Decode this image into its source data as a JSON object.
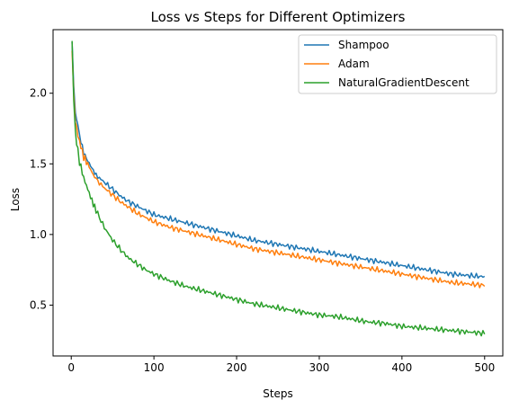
{
  "chart_data": {
    "type": "line",
    "title": "Loss vs Steps for Different Optimizers",
    "xlabel": "Steps",
    "ylabel": "Loss",
    "xlim": [
      -22,
      522
    ],
    "ylim": [
      0.14,
      2.45
    ],
    "xticks": [
      0,
      100,
      200,
      300,
      400,
      500
    ],
    "yticks": [
      0.5,
      1.0,
      1.5,
      2.0
    ],
    "xtick_labels": [
      "0",
      "100",
      "200",
      "300",
      "400",
      "500"
    ],
    "ytick_labels": [
      "0.5",
      "1.0",
      "1.5",
      "2.0"
    ],
    "grid": false,
    "legend": "top-right",
    "series": [
      {
        "name": "Shampoo",
        "color": "#1f77b4",
        "x": [
          1,
          3,
          5,
          8,
          10,
          15,
          20,
          25,
          30,
          40,
          50,
          60,
          70,
          80,
          90,
          100,
          120,
          140,
          160,
          180,
          200,
          220,
          240,
          260,
          280,
          300,
          320,
          340,
          360,
          380,
          400,
          420,
          440,
          460,
          480,
          500
        ],
        "y": [
          2.36,
          2.05,
          1.85,
          1.78,
          1.7,
          1.58,
          1.52,
          1.47,
          1.42,
          1.37,
          1.32,
          1.27,
          1.23,
          1.2,
          1.17,
          1.14,
          1.11,
          1.08,
          1.05,
          1.02,
          0.99,
          0.96,
          0.94,
          0.92,
          0.9,
          0.88,
          0.86,
          0.84,
          0.82,
          0.8,
          0.78,
          0.76,
          0.74,
          0.72,
          0.71,
          0.7
        ]
      },
      {
        "name": "Adam",
        "color": "#ff7f0e",
        "x": [
          1,
          3,
          5,
          8,
          10,
          15,
          20,
          25,
          30,
          40,
          50,
          60,
          70,
          80,
          90,
          100,
          120,
          140,
          160,
          180,
          200,
          220,
          240,
          260,
          280,
          300,
          320,
          340,
          360,
          380,
          400,
          420,
          440,
          460,
          480,
          500
        ],
        "y": [
          2.3,
          2.0,
          1.8,
          1.72,
          1.66,
          1.55,
          1.5,
          1.44,
          1.39,
          1.33,
          1.28,
          1.23,
          1.19,
          1.15,
          1.12,
          1.09,
          1.05,
          1.02,
          0.99,
          0.96,
          0.93,
          0.9,
          0.88,
          0.86,
          0.84,
          0.82,
          0.8,
          0.78,
          0.76,
          0.74,
          0.72,
          0.7,
          0.68,
          0.66,
          0.65,
          0.64
        ]
      },
      {
        "name": "NaturalGradientDescent",
        "color": "#2ca02c",
        "x": [
          1,
          3,
          5,
          8,
          10,
          15,
          20,
          25,
          30,
          40,
          50,
          60,
          70,
          80,
          90,
          100,
          120,
          140,
          160,
          180,
          200,
          220,
          240,
          260,
          280,
          300,
          320,
          340,
          360,
          380,
          400,
          420,
          440,
          460,
          480,
          500
        ],
        "y": [
          2.37,
          1.95,
          1.72,
          1.6,
          1.52,
          1.4,
          1.32,
          1.24,
          1.17,
          1.05,
          0.96,
          0.89,
          0.83,
          0.79,
          0.75,
          0.72,
          0.67,
          0.63,
          0.6,
          0.57,
          0.54,
          0.51,
          0.49,
          0.47,
          0.45,
          0.43,
          0.42,
          0.4,
          0.38,
          0.37,
          0.35,
          0.34,
          0.33,
          0.32,
          0.31,
          0.3
        ]
      }
    ]
  }
}
